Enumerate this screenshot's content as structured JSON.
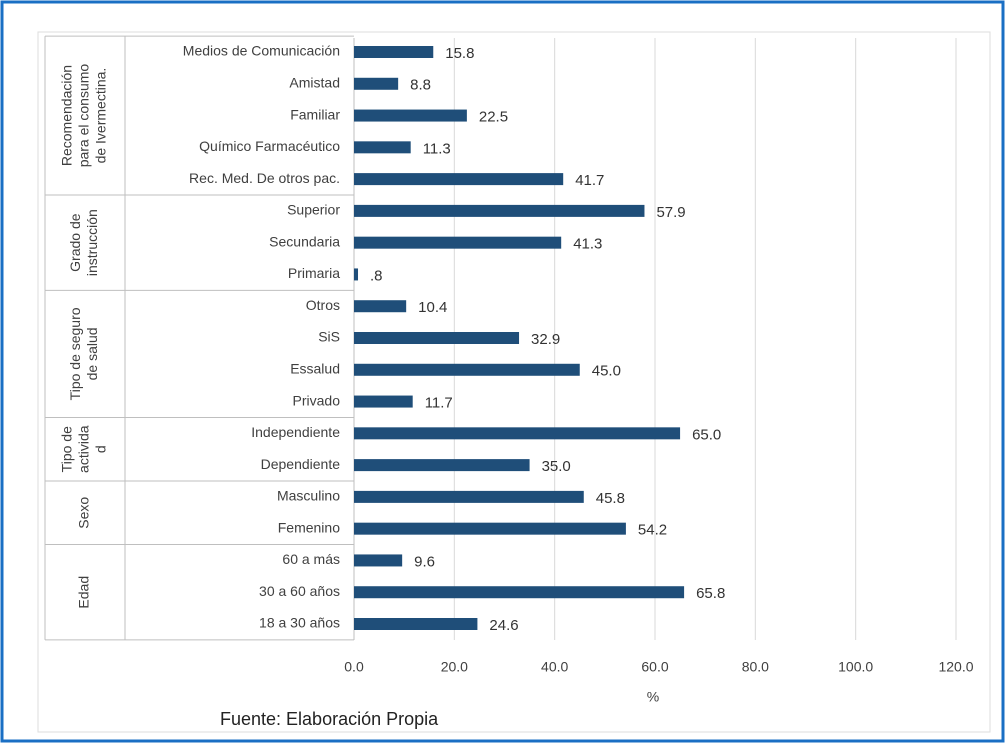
{
  "chart_data": {
    "type": "bar",
    "color": "#1f4e79",
    "xlabel": "%",
    "source": "Fuente: Elaboración Propia",
    "xlim": [
      0,
      120
    ],
    "xticks": [
      {
        "value": 0,
        "label": "0.0"
      },
      {
        "value": 20,
        "label": "20.0"
      },
      {
        "value": 40,
        "label": "40.0"
      },
      {
        "value": 60,
        "label": "60.0"
      },
      {
        "value": 80,
        "label": "80.0"
      },
      {
        "value": 100,
        "label": "100.0"
      },
      {
        "value": 120,
        "label": "120.0"
      }
    ],
    "grid": true,
    "groups": [
      {
        "label_lines": [
          "Recomendación",
          "para el consumo",
          "de Ivermectina."
        ],
        "categories": [
          "Medios de Comunicación",
          "Amistad",
          "Familiar",
          "Químico Farmacéutico",
          "Rec. Med. De otros pac."
        ],
        "values": [
          15.8,
          8.8,
          22.5,
          11.3,
          41.7
        ],
        "value_labels": [
          "15.8",
          "8.8",
          "22.5",
          "11.3",
          "41.7"
        ]
      },
      {
        "label_lines": [
          "Grado de",
          "instrucción"
        ],
        "categories": [
          "Superior",
          "Secundaria",
          "Primaria"
        ],
        "values": [
          57.9,
          41.3,
          0.8
        ],
        "value_labels": [
          "57.9",
          "41.3",
          ".8"
        ]
      },
      {
        "label_lines": [
          "Tipo de seguro",
          "de salud"
        ],
        "categories": [
          "Otros",
          "SiS",
          "Essalud",
          "Privado"
        ],
        "values": [
          10.4,
          32.9,
          45.0,
          11.7
        ],
        "value_labels": [
          "10.4",
          "32.9",
          "45.0",
          "11.7"
        ]
      },
      {
        "label_lines": [
          "Tipo de",
          "activida",
          "d"
        ],
        "categories": [
          "Independiente",
          "Dependiente"
        ],
        "values": [
          65.0,
          35.0
        ],
        "value_labels": [
          "65.0",
          "35.0"
        ]
      },
      {
        "label_lines": [
          "Sexo"
        ],
        "categories": [
          "Masculino",
          "Femenino"
        ],
        "values": [
          45.8,
          54.2
        ],
        "value_labels": [
          "45.8",
          "54.2"
        ]
      },
      {
        "label_lines": [
          "Edad"
        ],
        "categories": [
          "60 a más",
          "30 a 60 años",
          "18 a 30 años"
        ],
        "values": [
          9.6,
          65.8,
          24.6
        ],
        "value_labels": [
          "9.6",
          "65.8",
          "24.6"
        ]
      }
    ]
  }
}
